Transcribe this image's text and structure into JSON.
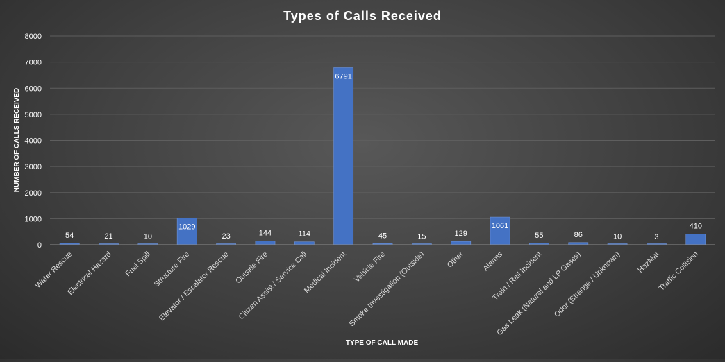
{
  "chart_data": {
    "type": "bar",
    "title": "Types  of  Calls  Received",
    "xlabel": "TYPE OF CALL MADE",
    "ylabel": "NUMBER OF CALLS RECEIVED",
    "ylim": [
      0,
      8000
    ],
    "yticks": [
      0,
      1000,
      2000,
      3000,
      4000,
      5000,
      6000,
      7000,
      8000
    ],
    "grid": true,
    "legend": "none",
    "bar_color": "#4472c4",
    "categories": [
      "Water Rescue",
      "Electrical Hazard",
      "Fuel Spill",
      "Structure Fire",
      "Elevator / Escalator Rescue",
      "Outside Fire",
      "Citizen Assist / Service Call",
      "Medical Incident",
      "Vehicle Fire",
      "Smoke Investigation (Outside)",
      "Other",
      "Alarms",
      "Train / Rail Incident",
      "Gas Leak (Natural and LP Gases)",
      "Odor (Strange / Unknown)",
      "HazMat",
      "Traffic Collision"
    ],
    "values": [
      54,
      21,
      10,
      1029,
      23,
      144,
      114,
      6791,
      45,
      15,
      129,
      1061,
      55,
      86,
      10,
      3,
      410
    ]
  }
}
